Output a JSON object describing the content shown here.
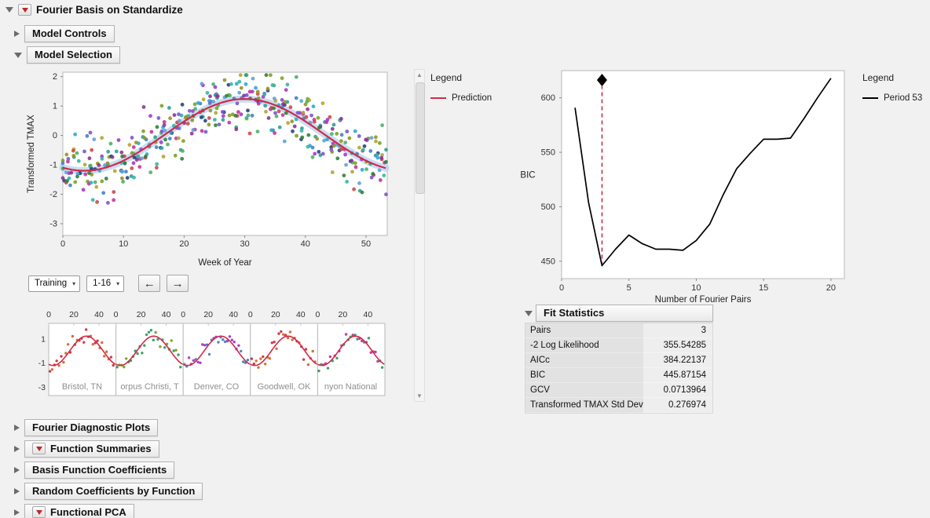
{
  "outline": {
    "root": {
      "title": "Fourier Basis on Standardize"
    },
    "items_top": [
      {
        "title": "Model Controls",
        "expanded": false
      },
      {
        "title": "Model Selection",
        "expanded": true
      }
    ],
    "items_bottom": [
      {
        "title": "Fourier Diagnostic Plots",
        "menu": false
      },
      {
        "title": "Function Summaries",
        "menu": true
      },
      {
        "title": "Basis Function Coefficients",
        "menu": false
      },
      {
        "title": "Random Coefficients by Function",
        "menu": false
      },
      {
        "title": "Functional PCA",
        "menu": true
      }
    ]
  },
  "icons": {
    "dropdown": "▾",
    "scroll_up": "▲",
    "scroll_down": "▼"
  },
  "controls": {
    "sample_select": "Training",
    "range_select": "1-16",
    "prev_label": "←",
    "next_label": "→"
  },
  "legend_left": {
    "title": "Legend",
    "items": [
      {
        "label": "Prediction",
        "color": "#d2294a"
      }
    ]
  },
  "legend_right": {
    "title": "Legend",
    "items": [
      {
        "label": "Period 53",
        "color": "#000000"
      }
    ]
  },
  "fit_statistics": {
    "title": "Fit Statistics",
    "rows": [
      {
        "label": "Pairs",
        "value": "3"
      },
      {
        "label": "-2 Log Likelihood",
        "value": "355.54285"
      },
      {
        "label": "AICc",
        "value": "384.22137"
      },
      {
        "label": "BIC",
        "value": "445.87154"
      },
      {
        "label": "GCV",
        "value": "0.0713964"
      },
      {
        "label": "Transformed TMAX Std Dev",
        "value": "0.276974"
      }
    ]
  },
  "chart_data": [
    {
      "type": "scatter",
      "title": "",
      "xlabel": "Week of Year",
      "ylabel": "Transformed TMAX",
      "xlim": [
        0,
        53.5
      ],
      "ylim": [
        -3.4,
        2.15
      ],
      "xticks": [
        0,
        10,
        20,
        30,
        40,
        50
      ],
      "yticks": [
        2,
        1,
        0,
        -1,
        -2,
        -3
      ],
      "prediction": {
        "label": "Prediction",
        "color": "#d2294a",
        "amplitude": 1.22,
        "peak_week": 30,
        "period": 53,
        "offset": 0.02,
        "band_color": "#b7d3ec",
        "band_halfwidth": 0.13
      },
      "group_colors": [
        "#7aa11f",
        "#2a9d8f",
        "#3f7fc1",
        "#a036c9",
        "#24407e",
        "#c2309f",
        "#26a9d0",
        "#b0a42b",
        "#4cae62",
        "#7a52c8",
        "#cc4444",
        "#2fb5a4",
        "#93921f",
        "#5e9ed6",
        "#8a2f96",
        "#2e7d32"
      ],
      "noise_sd": 0.52,
      "seed": 7
    },
    {
      "type": "line",
      "legend": "Period 53",
      "color": "#000000",
      "xlabel": "Number of Fourier Pairs",
      "ylabel": "BIC",
      "xlim": [
        0,
        21
      ],
      "ylim": [
        434,
        625
      ],
      "xticks": [
        0,
        5,
        10,
        15,
        20
      ],
      "yticks": [
        450,
        500,
        550,
        600
      ],
      "x": [
        1,
        2,
        3,
        4,
        5,
        6,
        7,
        8,
        9,
        10,
        11,
        12,
        13,
        14,
        15,
        16,
        17,
        18,
        19,
        20
      ],
      "y": [
        591,
        504,
        445.87,
        461,
        474,
        466,
        461,
        461,
        460,
        469,
        484,
        511,
        535,
        549,
        562,
        562,
        563,
        581,
        600,
        618
      ],
      "selected": {
        "x": 3,
        "y": 445.87,
        "line_color": "#d2294a",
        "marker": "diamond",
        "marker_color": "#000000"
      }
    },
    {
      "type": "small-multiples",
      "panel_labels": [
        "Bristol, TN",
        "orpus Christi, T",
        "Denver, CO",
        "Goodwell, OK",
        "nyon National"
      ],
      "xticks": [
        0,
        20,
        40
      ],
      "yticks": [
        1,
        -1,
        -3
      ],
      "xlim": [
        0,
        53.5
      ],
      "ylim": [
        -3.7,
        2.3
      ],
      "curve_color": "#d2294a",
      "panel_point_colors": [
        [
          "#cc3344",
          "#d06a2a"
        ],
        [
          "#2f9d5a",
          "#7aa11f"
        ],
        [
          "#3f7fc1",
          "#a036c9"
        ],
        [
          "#d06a2a",
          "#cc3344"
        ],
        [
          "#2f9d5a",
          "#c2309f"
        ]
      ],
      "noise_sd": 0.38,
      "points_step": 1.8,
      "seed": 23
    }
  ]
}
